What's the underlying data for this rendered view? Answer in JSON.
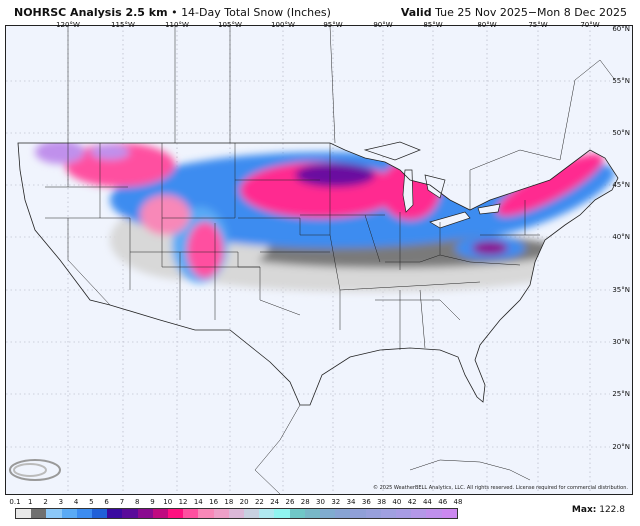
{
  "header": {
    "title_bold": "NOHRSC Analysis 2.5 km",
    "separator": "•",
    "subtitle": "14-Day Total Snow (Inches)",
    "valid_label": "Valid",
    "valid_range": "Tue 25 Nov 2025−Mon 8 Dec 2025"
  },
  "map": {
    "lon_labels": [
      "120°W",
      "115°W",
      "110°W",
      "105°W",
      "100°W",
      "95°W",
      "90°W",
      "85°W",
      "80°W",
      "75°W",
      "70°W"
    ],
    "lat_labels": [
      "60°N",
      "55°N",
      "50°N",
      "45°N",
      "40°N",
      "35°N",
      "30°N",
      "25°N",
      "20°N"
    ],
    "background_color": "#f0f4fd",
    "copyright": "© 2025 WeatherBELL Analytics, LLC. All rights reserved. License required for commercial distribution.",
    "logo_text": "WeatherBELL"
  },
  "colorbar": {
    "labels": [
      "0.1",
      "1",
      "2",
      "3",
      "4",
      "5",
      "6",
      "7",
      "8",
      "9",
      "10",
      "12",
      "14",
      "16",
      "18",
      "20",
      "22",
      "24",
      "26",
      "28",
      "30",
      "32",
      "34",
      "36",
      "38",
      "40",
      "42",
      "44",
      "46",
      "48"
    ],
    "colors": [
      "#e8e8e8",
      "#707070",
      "#8cc8f8",
      "#5aaaf5",
      "#3c8cf0",
      "#2060d8",
      "#3a0aa0",
      "#5a0a9a",
      "#8a0a90",
      "#c00a80",
      "#ff1080",
      "#ff50a0",
      "#f888b8",
      "#eea0c8",
      "#dcb8d8",
      "#c8d0e0",
      "#b0e8f0",
      "#90f4f0",
      "#70c8c8",
      "#78b8c8",
      "#80acd0",
      "#88a4d4",
      "#90a0d8",
      "#98a0dc",
      "#a0a0e0",
      "#a89ce4",
      "#b498e8",
      "#c090ec",
      "#cc88f0"
    ],
    "max_label": "Max:",
    "max_value": "122.8"
  }
}
